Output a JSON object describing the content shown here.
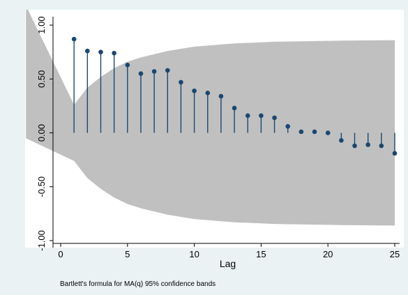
{
  "chart_data": {
    "type": "scatter",
    "subtype": "correlogram",
    "xlabel": "Lag",
    "ylabel": "",
    "note": "Bartlett's formula for MA(q) 95% confidence bands",
    "xlim": [
      0,
      25
    ],
    "ylim": [
      -1.0,
      1.0
    ],
    "xticks": [
      0,
      5,
      10,
      15,
      20,
      25
    ],
    "xtick_labels": [
      "0",
      "5",
      "10",
      "15",
      "20",
      "25"
    ],
    "yticks": [
      -1.0,
      -0.5,
      0.0,
      0.5,
      1.0
    ],
    "ytick_labels": [
      "-1.00",
      "-0.50",
      "0.00",
      "0.50",
      "1.00"
    ],
    "grid": false,
    "lags": [
      1,
      2,
      3,
      4,
      5,
      6,
      7,
      8,
      9,
      10,
      11,
      12,
      13,
      14,
      15,
      16,
      17,
      18,
      19,
      20,
      21,
      22,
      23,
      24,
      25
    ],
    "autocorrelations": [
      0.87,
      0.76,
      0.75,
      0.74,
      0.63,
      0.55,
      0.57,
      0.58,
      0.47,
      0.39,
      0.37,
      0.34,
      0.23,
      0.16,
      0.16,
      0.14,
      0.06,
      0.01,
      0.01,
      0.0,
      -0.07,
      -0.12,
      -0.11,
      -0.12,
      -0.19
    ],
    "band_lags": [
      0,
      1,
      2,
      3,
      4,
      5,
      6,
      7,
      8,
      9,
      10,
      11,
      12,
      13,
      14,
      15,
      16,
      17,
      18,
      19,
      20,
      21,
      22,
      23,
      24,
      25
    ],
    "band_upper": [
      1.0,
      0.26,
      0.42,
      0.52,
      0.6,
      0.66,
      0.7,
      0.73,
      0.76,
      0.78,
      0.8,
      0.81,
      0.82,
      0.83,
      0.835,
      0.84,
      0.845,
      0.848,
      0.85,
      0.852,
      0.854,
      0.856,
      0.857,
      0.858,
      0.859,
      0.86
    ],
    "band_lower": [
      -1.0,
      -0.26,
      -0.42,
      -0.52,
      -0.6,
      -0.66,
      -0.7,
      -0.73,
      -0.76,
      -0.78,
      -0.8,
      -0.81,
      -0.82,
      -0.83,
      -0.835,
      -0.84,
      -0.845,
      -0.848,
      -0.85,
      -0.852,
      -0.854,
      -0.856,
      -0.857,
      -0.858,
      -0.859,
      -0.86
    ],
    "colors": {
      "marker": "#1a476f",
      "band": "#c0c0c0",
      "outer_background": "#eaf2f3",
      "plot_background": "#ffffff"
    }
  }
}
